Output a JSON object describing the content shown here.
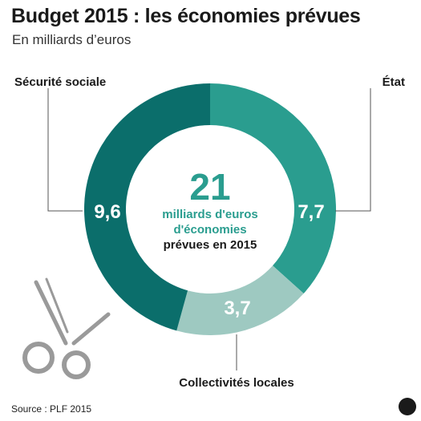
{
  "header": {
    "title": "Budget 2015 : les économies prévues",
    "subtitle": "En milliards d’euros"
  },
  "chart_data": {
    "type": "donut",
    "categories": [
      "État",
      "Collectivités locales",
      "Sécurité sociale"
    ],
    "values": [
      7.7,
      3.7,
      9.6
    ],
    "value_labels": [
      "7,7",
      "3,7",
      "9,6"
    ],
    "colors": [
      "#2a9d8f",
      "#9ec9c1",
      "#0b6e6b"
    ],
    "center": {
      "value": "21",
      "line1": "milliards d'euros",
      "line2": "d'économies",
      "line3": "prévues en 2015"
    }
  },
  "footer": {
    "source": "Source : PLF 2015"
  }
}
